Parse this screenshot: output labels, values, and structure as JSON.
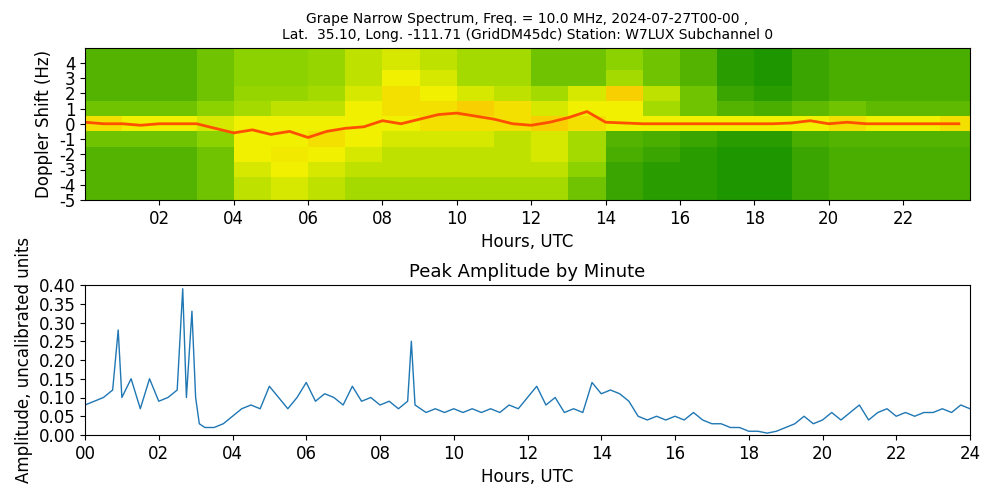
{
  "chart_data": [
    {
      "type": "heatmap",
      "title": "Grape Narrow Spectrum, Freq. = 10.0 MHz, 2024-07-27T00-00 ,\nLat.  35.10, Long. -111.71 (GridDM45dc) Station: W7LUX Subchannel 0",
      "x_label": "Hours, UTC",
      "y_label": "Doppler Shift (Hz)",
      "xlim": [
        0,
        23.8
      ],
      "ylim": [
        -5,
        5
      ],
      "xticks": [
        {
          "value": 2,
          "label": "02"
        },
        {
          "value": 4,
          "label": "04"
        },
        {
          "value": 6,
          "label": "06"
        },
        {
          "value": 8,
          "label": "08"
        },
        {
          "value": 10,
          "label": "10"
        },
        {
          "value": 12,
          "label": "12"
        },
        {
          "value": 14,
          "label": "14"
        },
        {
          "value": 16,
          "label": "16"
        },
        {
          "value": 18,
          "label": "18"
        },
        {
          "value": 20,
          "label": "20"
        },
        {
          "value": 22,
          "label": "22"
        }
      ],
      "yticks": [
        -5,
        -4,
        -3,
        -2,
        -1,
        0,
        1,
        2,
        3,
        4
      ],
      "x_edges": [
        0,
        1,
        2,
        3,
        4,
        5,
        6,
        7,
        8,
        9,
        10,
        11,
        12,
        13,
        14,
        15,
        16,
        17,
        18,
        19,
        20,
        21,
        22,
        23,
        24
      ],
      "y_edges": [
        -5,
        -4.5,
        -3.5,
        -2.5,
        -1.5,
        -0.5,
        0.5,
        1.5,
        2.5,
        3.5,
        4.5,
        5
      ],
      "cell_range": [
        0,
        1
      ],
      "cells": [
        [
          0.3,
          0.3,
          0.3,
          0.35,
          0.5,
          0.55,
          0.5,
          0.45,
          0.45,
          0.45,
          0.45,
          0.45,
          0.45,
          0.35,
          0.25,
          0.22,
          0.22,
          0.2,
          0.2,
          0.25,
          0.28,
          0.28,
          0.28,
          0.28
        ],
        [
          0.3,
          0.3,
          0.3,
          0.35,
          0.5,
          0.55,
          0.5,
          0.45,
          0.45,
          0.45,
          0.45,
          0.45,
          0.45,
          0.35,
          0.25,
          0.22,
          0.22,
          0.2,
          0.2,
          0.25,
          0.28,
          0.28,
          0.28,
          0.28
        ],
        [
          0.3,
          0.3,
          0.3,
          0.35,
          0.55,
          0.6,
          0.55,
          0.5,
          0.5,
          0.5,
          0.5,
          0.5,
          0.5,
          0.4,
          0.25,
          0.22,
          0.22,
          0.2,
          0.2,
          0.25,
          0.28,
          0.28,
          0.28,
          0.28
        ],
        [
          0.3,
          0.3,
          0.3,
          0.35,
          0.6,
          0.62,
          0.6,
          0.55,
          0.5,
          0.5,
          0.5,
          0.5,
          0.55,
          0.45,
          0.28,
          0.25,
          0.22,
          0.2,
          0.2,
          0.25,
          0.28,
          0.28,
          0.28,
          0.28
        ],
        [
          0.35,
          0.35,
          0.35,
          0.4,
          0.6,
          0.6,
          0.65,
          0.6,
          0.55,
          0.55,
          0.55,
          0.5,
          0.55,
          0.45,
          0.3,
          0.28,
          0.25,
          0.22,
          0.22,
          0.28,
          0.3,
          0.3,
          0.3,
          0.3
        ],
        [
          0.65,
          0.6,
          0.6,
          0.55,
          0.6,
          0.6,
          0.6,
          0.6,
          0.6,
          0.65,
          0.65,
          0.65,
          0.7,
          0.65,
          0.6,
          0.6,
          0.6,
          0.6,
          0.6,
          0.6,
          0.65,
          0.6,
          0.6,
          0.65
        ],
        [
          0.35,
          0.35,
          0.35,
          0.4,
          0.45,
          0.5,
          0.5,
          0.6,
          0.65,
          0.65,
          0.7,
          0.65,
          0.55,
          0.6,
          0.6,
          0.45,
          0.35,
          0.3,
          0.28,
          0.32,
          0.35,
          0.32,
          0.32,
          0.32
        ],
        [
          0.3,
          0.3,
          0.3,
          0.35,
          0.42,
          0.42,
          0.45,
          0.55,
          0.65,
          0.6,
          0.55,
          0.5,
          0.45,
          0.55,
          0.7,
          0.5,
          0.35,
          0.25,
          0.22,
          0.25,
          0.28,
          0.28,
          0.28,
          0.28
        ],
        [
          0.3,
          0.3,
          0.3,
          0.35,
          0.4,
          0.4,
          0.42,
          0.5,
          0.6,
          0.55,
          0.45,
          0.45,
          0.35,
          0.35,
          0.45,
          0.35,
          0.3,
          0.22,
          0.2,
          0.25,
          0.28,
          0.28,
          0.28,
          0.28
        ],
        [
          0.3,
          0.3,
          0.3,
          0.35,
          0.4,
          0.4,
          0.42,
          0.5,
          0.55,
          0.5,
          0.45,
          0.45,
          0.35,
          0.35,
          0.4,
          0.35,
          0.3,
          0.22,
          0.2,
          0.25,
          0.28,
          0.28,
          0.28,
          0.28
        ],
        [
          0.3,
          0.3,
          0.3,
          0.35,
          0.4,
          0.4,
          0.42,
          0.5,
          0.55,
          0.5,
          0.45,
          0.45,
          0.35,
          0.35,
          0.4,
          0.35,
          0.3,
          0.22,
          0.2,
          0.25,
          0.28,
          0.28,
          0.28,
          0.28
        ]
      ],
      "x": [
        0,
        0.5,
        1,
        1.5,
        2,
        2.5,
        3,
        3.5,
        4,
        4.5,
        5,
        5.5,
        6,
        6.5,
        7,
        7.5,
        8,
        8.5,
        9,
        9.5,
        10,
        10.5,
        11,
        11.5,
        12,
        12.5,
        13,
        13.5,
        14,
        14.5,
        15,
        15.5,
        16,
        16.5,
        17,
        17.5,
        18,
        18.5,
        19,
        19.5,
        20,
        20.5,
        21,
        21.5,
        22,
        22.5,
        23,
        23.5
      ],
      "values": [
        0.1,
        0,
        0,
        -0.1,
        0,
        0,
        0,
        -0.3,
        -0.6,
        -0.4,
        -0.7,
        -0.5,
        -0.9,
        -0.5,
        -0.3,
        -0.2,
        0.2,
        0,
        0.3,
        0.6,
        0.7,
        0.5,
        0.3,
        0,
        -0.1,
        0.1,
        0.4,
        0.8,
        0.1,
        0.05,
        0,
        0,
        0,
        0,
        0,
        0,
        0,
        0,
        0.05,
        0.2,
        0,
        0.1,
        0,
        0,
        0,
        0,
        0,
        0
      ],
      "color": "#ff5000"
    },
    {
      "type": "line",
      "title": "Peak Amplitude by Minute",
      "x_label": "Hours, UTC",
      "y_label": "Amplitude, uncalibrated units",
      "xlim": [
        0,
        24
      ],
      "ylim": [
        0,
        0.4
      ],
      "xticks": [
        {
          "value": 0,
          "label": "00"
        },
        {
          "value": 2,
          "label": "02"
        },
        {
          "value": 4,
          "label": "04"
        },
        {
          "value": 6,
          "label": "06"
        },
        {
          "value": 8,
          "label": "08"
        },
        {
          "value": 10,
          "label": "10"
        },
        {
          "value": 12,
          "label": "12"
        },
        {
          "value": 14,
          "label": "14"
        },
        {
          "value": 16,
          "label": "16"
        },
        {
          "value": 18,
          "label": "18"
        },
        {
          "value": 20,
          "label": "20"
        },
        {
          "value": 22,
          "label": "22"
        },
        {
          "value": 24,
          "label": "24"
        }
      ],
      "yticks": [
        {
          "value": 0,
          "label": "0.00"
        },
        {
          "value": 0.05,
          "label": "0.05"
        },
        {
          "value": 0.1,
          "label": "0.10"
        },
        {
          "value": 0.15,
          "label": "0.15"
        },
        {
          "value": 0.2,
          "label": "0.20"
        },
        {
          "value": 0.25,
          "label": "0.25"
        },
        {
          "value": 0.3,
          "label": "0.30"
        },
        {
          "value": 0.35,
          "label": "0.35"
        },
        {
          "value": 0.4,
          "label": "0.40"
        }
      ],
      "color": "#1f77b4",
      "x": [
        0,
        0.25,
        0.5,
        0.75,
        0.9,
        1.0,
        1.25,
        1.5,
        1.75,
        2.0,
        2.25,
        2.5,
        2.65,
        2.75,
        2.9,
        3.0,
        3.1,
        3.25,
        3.5,
        3.75,
        4.0,
        4.25,
        4.5,
        4.75,
        5.0,
        5.25,
        5.5,
        5.75,
        6.0,
        6.25,
        6.5,
        6.75,
        7.0,
        7.25,
        7.5,
        7.75,
        8.0,
        8.25,
        8.5,
        8.75,
        8.85,
        8.95,
        9.25,
        9.5,
        9.75,
        10.0,
        10.25,
        10.5,
        10.75,
        11.0,
        11.25,
        11.5,
        11.75,
        12.0,
        12.25,
        12.5,
        12.75,
        13.0,
        13.25,
        13.5,
        13.75,
        14.0,
        14.25,
        14.5,
        14.75,
        15.0,
        15.25,
        15.5,
        15.75,
        16.0,
        16.25,
        16.5,
        16.75,
        17.0,
        17.25,
        17.5,
        17.75,
        18.0,
        18.25,
        18.5,
        18.75,
        19.0,
        19.25,
        19.5,
        19.75,
        20.0,
        20.25,
        20.5,
        20.75,
        21.0,
        21.25,
        21.5,
        21.75,
        22.0,
        22.25,
        22.5,
        22.75,
        23.0,
        23.25,
        23.5,
        23.75,
        24.0
      ],
      "values": [
        0.08,
        0.09,
        0.1,
        0.12,
        0.28,
        0.1,
        0.15,
        0.07,
        0.15,
        0.09,
        0.1,
        0.12,
        0.39,
        0.1,
        0.33,
        0.1,
        0.03,
        0.02,
        0.02,
        0.03,
        0.05,
        0.07,
        0.08,
        0.07,
        0.13,
        0.1,
        0.07,
        0.1,
        0.14,
        0.09,
        0.11,
        0.1,
        0.08,
        0.13,
        0.09,
        0.1,
        0.08,
        0.09,
        0.07,
        0.09,
        0.25,
        0.08,
        0.06,
        0.07,
        0.06,
        0.07,
        0.06,
        0.07,
        0.06,
        0.07,
        0.06,
        0.08,
        0.07,
        0.1,
        0.13,
        0.08,
        0.1,
        0.06,
        0.07,
        0.06,
        0.14,
        0.11,
        0.12,
        0.11,
        0.09,
        0.05,
        0.04,
        0.05,
        0.04,
        0.05,
        0.04,
        0.06,
        0.04,
        0.03,
        0.03,
        0.02,
        0.02,
        0.01,
        0.01,
        0.005,
        0.01,
        0.02,
        0.03,
        0.05,
        0.03,
        0.04,
        0.06,
        0.04,
        0.06,
        0.08,
        0.04,
        0.06,
        0.07,
        0.05,
        0.06,
        0.05,
        0.06,
        0.06,
        0.07,
        0.06,
        0.08,
        0.07
      ]
    }
  ]
}
